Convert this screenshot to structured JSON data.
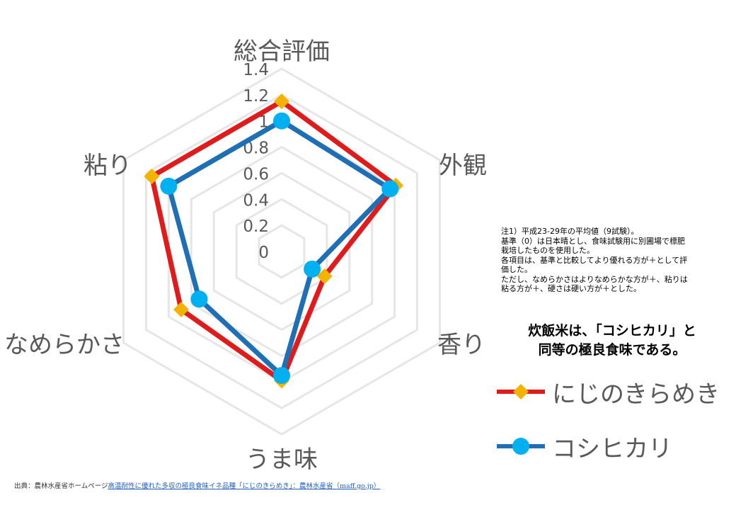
{
  "chart_data": {
    "type": "radar",
    "axes": [
      "総合評価",
      "外観",
      "香り",
      "うま味",
      "なめらかさ",
      "粘り"
    ],
    "ticks": [
      "0",
      "0.2",
      "0.4",
      "0.6",
      "0.8",
      "1",
      "1.2",
      "1.4"
    ],
    "rmax": 1.4,
    "series": [
      {
        "name": "にじのきらめき",
        "color": "#e01b1b",
        "marker_color": "#f5b301",
        "marker": "diamond",
        "values": [
          1.15,
          1.01,
          0.38,
          0.99,
          0.89,
          1.15
        ]
      },
      {
        "name": "コシヒカリ",
        "color": "#1f6fb5",
        "marker_color": "#00b0f0",
        "marker": "circle",
        "values": [
          1.0,
          0.96,
          0.27,
          0.95,
          0.73,
          1.0
        ]
      }
    ]
  },
  "notes": [
    "注1）平成23-29年の平均値（9試験）。",
    "基準（0）は日本晴とし、食味試験用に別圃場で標肥",
    "栽培したものを使用した。",
    "各項目は、基準と比較してより優れる方が＋として評",
    "価した。",
    "ただし、なめらかさはよりなめらかな方が＋、粘りは",
    "粘る方が＋、硬さは硬い方が＋とした。"
  ],
  "conclusion": [
    "炊飯米は、「コシヒカリ」と",
    "同等の極良食味である。"
  ],
  "source": {
    "prefix": "出典：農林水産省ホームページ",
    "link": "高温耐性に優れた多収の極良食味イネ品種「にじのきらめき」：農林水産省（maff.go.jp）"
  }
}
